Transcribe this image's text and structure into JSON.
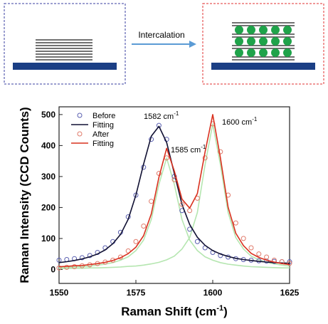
{
  "diagram": {
    "label": "Intercalation"
  },
  "chart_data": {
    "type": "line",
    "x_label": [
      "Raman Shift (cm",
      "-1",
      ")"
    ],
    "y_label": "Raman Intensity (CCD Counts)",
    "xlim": [
      1550,
      1625
    ],
    "xticks": [
      1550,
      1575,
      1600,
      1625
    ],
    "ylim": [
      -45,
      525
    ],
    "yticks": [
      0,
      100,
      200,
      300,
      400,
      500
    ],
    "x": [
      1550,
      1552.5,
      1555,
      1557.5,
      1560,
      1562.5,
      1565,
      1567.5,
      1570,
      1572.5,
      1575,
      1577.5,
      1580,
      1582.5,
      1585,
      1587.5,
      1590,
      1592.5,
      1595,
      1597.5,
      1600,
      1602.5,
      1605,
      1607.5,
      1610,
      1612.5,
      1615,
      1617.5,
      1620,
      1622.5,
      1625
    ],
    "series": [
      {
        "color": "#b5e6b0",
        "style": "line",
        "values": [
          6,
          7,
          8,
          9,
          11,
          14,
          17,
          22,
          30,
          41,
          61,
          95,
          161,
          275,
          360,
          275,
          161,
          95,
          61,
          41,
          30,
          22,
          17,
          14,
          11,
          9,
          8,
          7,
          6,
          5,
          5
        ]
      },
      {
        "color": "#b5e6b0",
        "style": "line",
        "values": [
          3,
          3,
          4,
          4,
          5,
          5,
          6,
          7,
          8,
          10,
          11,
          14,
          18,
          23,
          31,
          43,
          66,
          103,
          184,
          338,
          470,
          338,
          184,
          103,
          66,
          43,
          31,
          23,
          18,
          14,
          11
        ]
      },
      {
        "name": "Before",
        "color": "#5a5fb0",
        "style": "marker",
        "values": [
          30,
          32,
          35,
          38,
          45,
          55,
          70,
          90,
          120,
          170,
          240,
          330,
          420,
          465,
          420,
          300,
          190,
          130,
          90,
          70,
          55,
          45,
          40,
          35,
          32,
          30,
          28,
          27,
          26,
          25,
          25
        ]
      },
      {
        "name": "Fitting",
        "color": "#111133",
        "style": "line",
        "values": [
          22,
          25,
          29,
          34,
          41,
          50,
          63,
          83,
          113,
          162,
          240,
          340,
          430,
          462,
          410,
          310,
          210,
          145,
          104,
          78,
          61,
          50,
          42,
          36,
          32,
          29,
          26,
          24,
          22,
          21,
          20
        ]
      },
      {
        "name": "After",
        "color": "#e07a6a",
        "style": "marker",
        "values": [
          5,
          7,
          9,
          12,
          15,
          19,
          24,
          30,
          40,
          60,
          90,
          140,
          220,
          310,
          360,
          290,
          210,
          190,
          230,
          360,
          470,
          380,
          240,
          150,
          100,
          70,
          50,
          40,
          30,
          25,
          20
        ]
      },
      {
        "name": "Fitting",
        "color": "#d9311f",
        "style": "line",
        "values": [
          9,
          10,
          12,
          13,
          16,
          19,
          23,
          29,
          38,
          51,
          72,
          109,
          179,
          298,
          391,
          318,
          227,
          198,
          245,
          379,
          500,
          360,
          201,
          117,
          77,
          52,
          39,
          30,
          24,
          19,
          16
        ]
      }
    ],
    "annotations": [
      {
        "text": "1582 cm",
        "sup": "-1"
      },
      {
        "text": "1585 cm",
        "sup": "-1"
      },
      {
        "text": "1600 cm",
        "sup": "-1"
      }
    ]
  }
}
